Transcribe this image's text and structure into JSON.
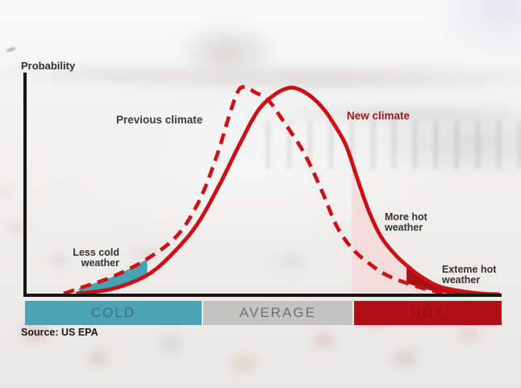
{
  "labels": {
    "probability": "Probability",
    "previous_climate": "Previous climate",
    "new_climate": "New climate",
    "source": "Source: US EPA"
  },
  "annotations": {
    "less_cold_line1": "Less cold",
    "less_cold_line2": "weather",
    "more_hot_line1": "More hot",
    "more_hot_line2": "weather",
    "extreme_hot_line1": "Exteme hot",
    "extreme_hot_line2": "weather"
  },
  "colors": {
    "curve_red": "#cc1116",
    "new_climate_label": "#9b191c",
    "axis_black": "#161616"
  },
  "chart_data": {
    "type": "area",
    "description": "Shifted probability distributions of temperature: previous climate (dashed) vs new climate (solid). X axis is temperature category, Y axis is probability. Coordinates are normalized: x 0-1 across axis, y 0-1 relative probability.",
    "ylabel": "Probability",
    "x_axis_bands": [
      {
        "label": "COLD",
        "color": "#4ba4b5",
        "text_color": "#41707b"
      },
      {
        "label": "AVERAGE",
        "color": "#c3c3c2",
        "text_color": "#6f6f6f"
      },
      {
        "label": "HOT",
        "color": "#b11116",
        "text_color": "#8a1215"
      }
    ],
    "series": [
      {
        "name": "Previous climate",
        "style": "dashed",
        "color": "#cc1116",
        "points": [
          [
            0.081,
            0.004
          ],
          [
            0.115,
            0.031
          ],
          [
            0.183,
            0.085
          ],
          [
            0.256,
            0.171
          ],
          [
            0.319,
            0.283
          ],
          [
            0.366,
            0.453
          ],
          [
            0.403,
            0.671
          ],
          [
            0.427,
            0.849
          ],
          [
            0.447,
            0.977
          ],
          [
            0.463,
            0.996
          ],
          [
            0.481,
            0.973
          ],
          [
            0.51,
            0.934
          ],
          [
            0.542,
            0.833
          ],
          [
            0.586,
            0.678
          ],
          [
            0.624,
            0.492
          ],
          [
            0.654,
            0.329
          ],
          [
            0.685,
            0.225
          ],
          [
            0.719,
            0.155
          ],
          [
            0.759,
            0.093
          ],
          [
            0.807,
            0.05
          ],
          [
            0.858,
            0.016
          ],
          [
            0.903,
            0.0
          ]
        ]
      },
      {
        "name": "New climate",
        "style": "solid",
        "color": "#cc1116",
        "points": [
          [
            0.107,
            0.004
          ],
          [
            0.183,
            0.027
          ],
          [
            0.256,
            0.093
          ],
          [
            0.31,
            0.198
          ],
          [
            0.361,
            0.337
          ],
          [
            0.407,
            0.523
          ],
          [
            0.451,
            0.725
          ],
          [
            0.488,
            0.88
          ],
          [
            0.522,
            0.957
          ],
          [
            0.553,
            0.992
          ],
          [
            0.576,
            0.984
          ],
          [
            0.603,
            0.946
          ],
          [
            0.629,
            0.884
          ],
          [
            0.653,
            0.802
          ],
          [
            0.675,
            0.709
          ],
          [
            0.698,
            0.554
          ],
          [
            0.722,
            0.399
          ],
          [
            0.747,
            0.279
          ],
          [
            0.776,
            0.194
          ],
          [
            0.805,
            0.132
          ],
          [
            0.832,
            0.085
          ],
          [
            0.869,
            0.039
          ],
          [
            0.915,
            0.016
          ],
          [
            0.959,
            0.004
          ],
          [
            0.997,
            0.0
          ]
        ]
      }
    ],
    "regions": [
      {
        "label": "Less cold weather",
        "fill": "#45a3b4",
        "type": "between_previous_and_new",
        "x_range": [
          0.112,
          0.256
        ]
      },
      {
        "label": "More hot weather",
        "fill": "#f3dcdb",
        "type": "under_new_to_baseline",
        "x_range": [
          0.686,
          0.897
        ]
      },
      {
        "label": "Exteme hot weather",
        "fill": "#a51114",
        "type": "between_new_and_previous_tail",
        "x_range": [
          0.801,
          0.997
        ]
      }
    ]
  }
}
